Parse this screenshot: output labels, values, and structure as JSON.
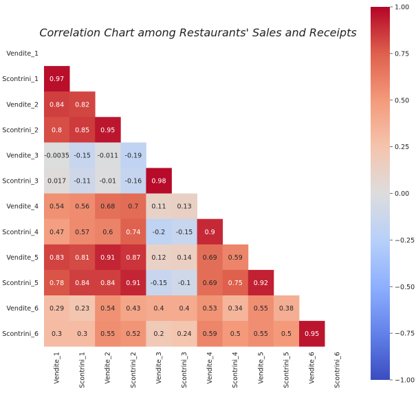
{
  "chart_data": {
    "type": "heatmap",
    "title": "Correlation Chart among Restaurants' Sales and Receipts",
    "mask": "upper-triangle-including-diagonal",
    "colormap": "coolwarm",
    "colors": {
      "low": "#3b4cc0",
      "mid": "#dddddd",
      "high": "#b40426"
    },
    "rows": [
      "Vendite_1",
      "Scontrini_1",
      "Vendite_2",
      "Scontrini_2",
      "Vendite_3",
      "Scontrini_3",
      "Vendite_4",
      "Scontrini_4",
      "Vendite_5",
      "Scontrini_5",
      "Vendite_6",
      "Scontrini_6"
    ],
    "columns": [
      "Vendite_1",
      "Scontrini_1",
      "Vendite_2",
      "Scontrini_2",
      "Vendite_3",
      "Scontrini_3",
      "Vendite_4",
      "Scontrini_4",
      "Vendite_5",
      "Scontrini_5",
      "Vendite_6",
      "Scontrini_6"
    ],
    "values": [
      [],
      [
        0.97
      ],
      [
        0.84,
        0.82
      ],
      [
        0.8,
        0.85,
        0.95
      ],
      [
        -0.0035,
        -0.15,
        -0.011,
        -0.19
      ],
      [
        0.017,
        -0.11,
        -0.01,
        -0.16,
        0.98
      ],
      [
        0.54,
        0.56,
        0.68,
        0.7,
        0.11,
        0.13
      ],
      [
        0.47,
        0.57,
        0.6,
        0.74,
        -0.2,
        -0.15,
        0.9
      ],
      [
        0.83,
        0.81,
        0.91,
        0.87,
        0.12,
        0.14,
        0.69,
        0.59
      ],
      [
        0.78,
        0.84,
        0.84,
        0.91,
        -0.15,
        -0.1,
        0.69,
        0.75,
        0.92
      ],
      [
        0.29,
        0.23,
        0.54,
        0.43,
        0.4,
        0.4,
        0.53,
        0.34,
        0.55,
        0.38
      ],
      [
        0.3,
        0.3,
        0.55,
        0.52,
        0.2,
        0.24,
        0.59,
        0.5,
        0.55,
        0.5,
        0.95
      ]
    ],
    "labels": [
      [],
      [
        "0.97"
      ],
      [
        "0.84",
        "0.82"
      ],
      [
        "0.8",
        "0.85",
        "0.95"
      ],
      [
        "-0.0035",
        "-0.15",
        "-0.011",
        "-0.19"
      ],
      [
        "0.017",
        "-0.11",
        "-0.01",
        "-0.16",
        "0.98"
      ],
      [
        "0.54",
        "0.56",
        "0.68",
        "0.7",
        "0.11",
        "0.13"
      ],
      [
        "0.47",
        "0.57",
        "0.6",
        "0.74",
        "-0.2",
        "-0.15",
        "0.9"
      ],
      [
        "0.83",
        "0.81",
        "0.91",
        "0.87",
        "0.12",
        "0.14",
        "0.69",
        "0.59"
      ],
      [
        "0.78",
        "0.84",
        "0.84",
        "0.91",
        "-0.15",
        "-0.1",
        "0.69",
        "0.75",
        "0.92"
      ],
      [
        "0.29",
        "0.23",
        "0.54",
        "0.43",
        "0.4",
        "0.4",
        "0.53",
        "0.34",
        "0.55",
        "0.38"
      ],
      [
        "0.3",
        "0.3",
        "0.55",
        "0.52",
        "0.2",
        "0.24",
        "0.59",
        "0.5",
        "0.55",
        "0.5",
        "0.95"
      ]
    ],
    "vmin": -1.0,
    "vmax": 1.0,
    "colorbar_ticks": [
      1.0,
      0.75,
      0.5,
      0.25,
      0.0,
      -0.25,
      -0.5,
      -0.75,
      -1.0
    ],
    "colorbar_tick_labels": [
      "1.00",
      "0.75",
      "0.50",
      "0.25",
      "0.00",
      "−0.25",
      "−0.50",
      "−0.75",
      "−1.00"
    ]
  }
}
